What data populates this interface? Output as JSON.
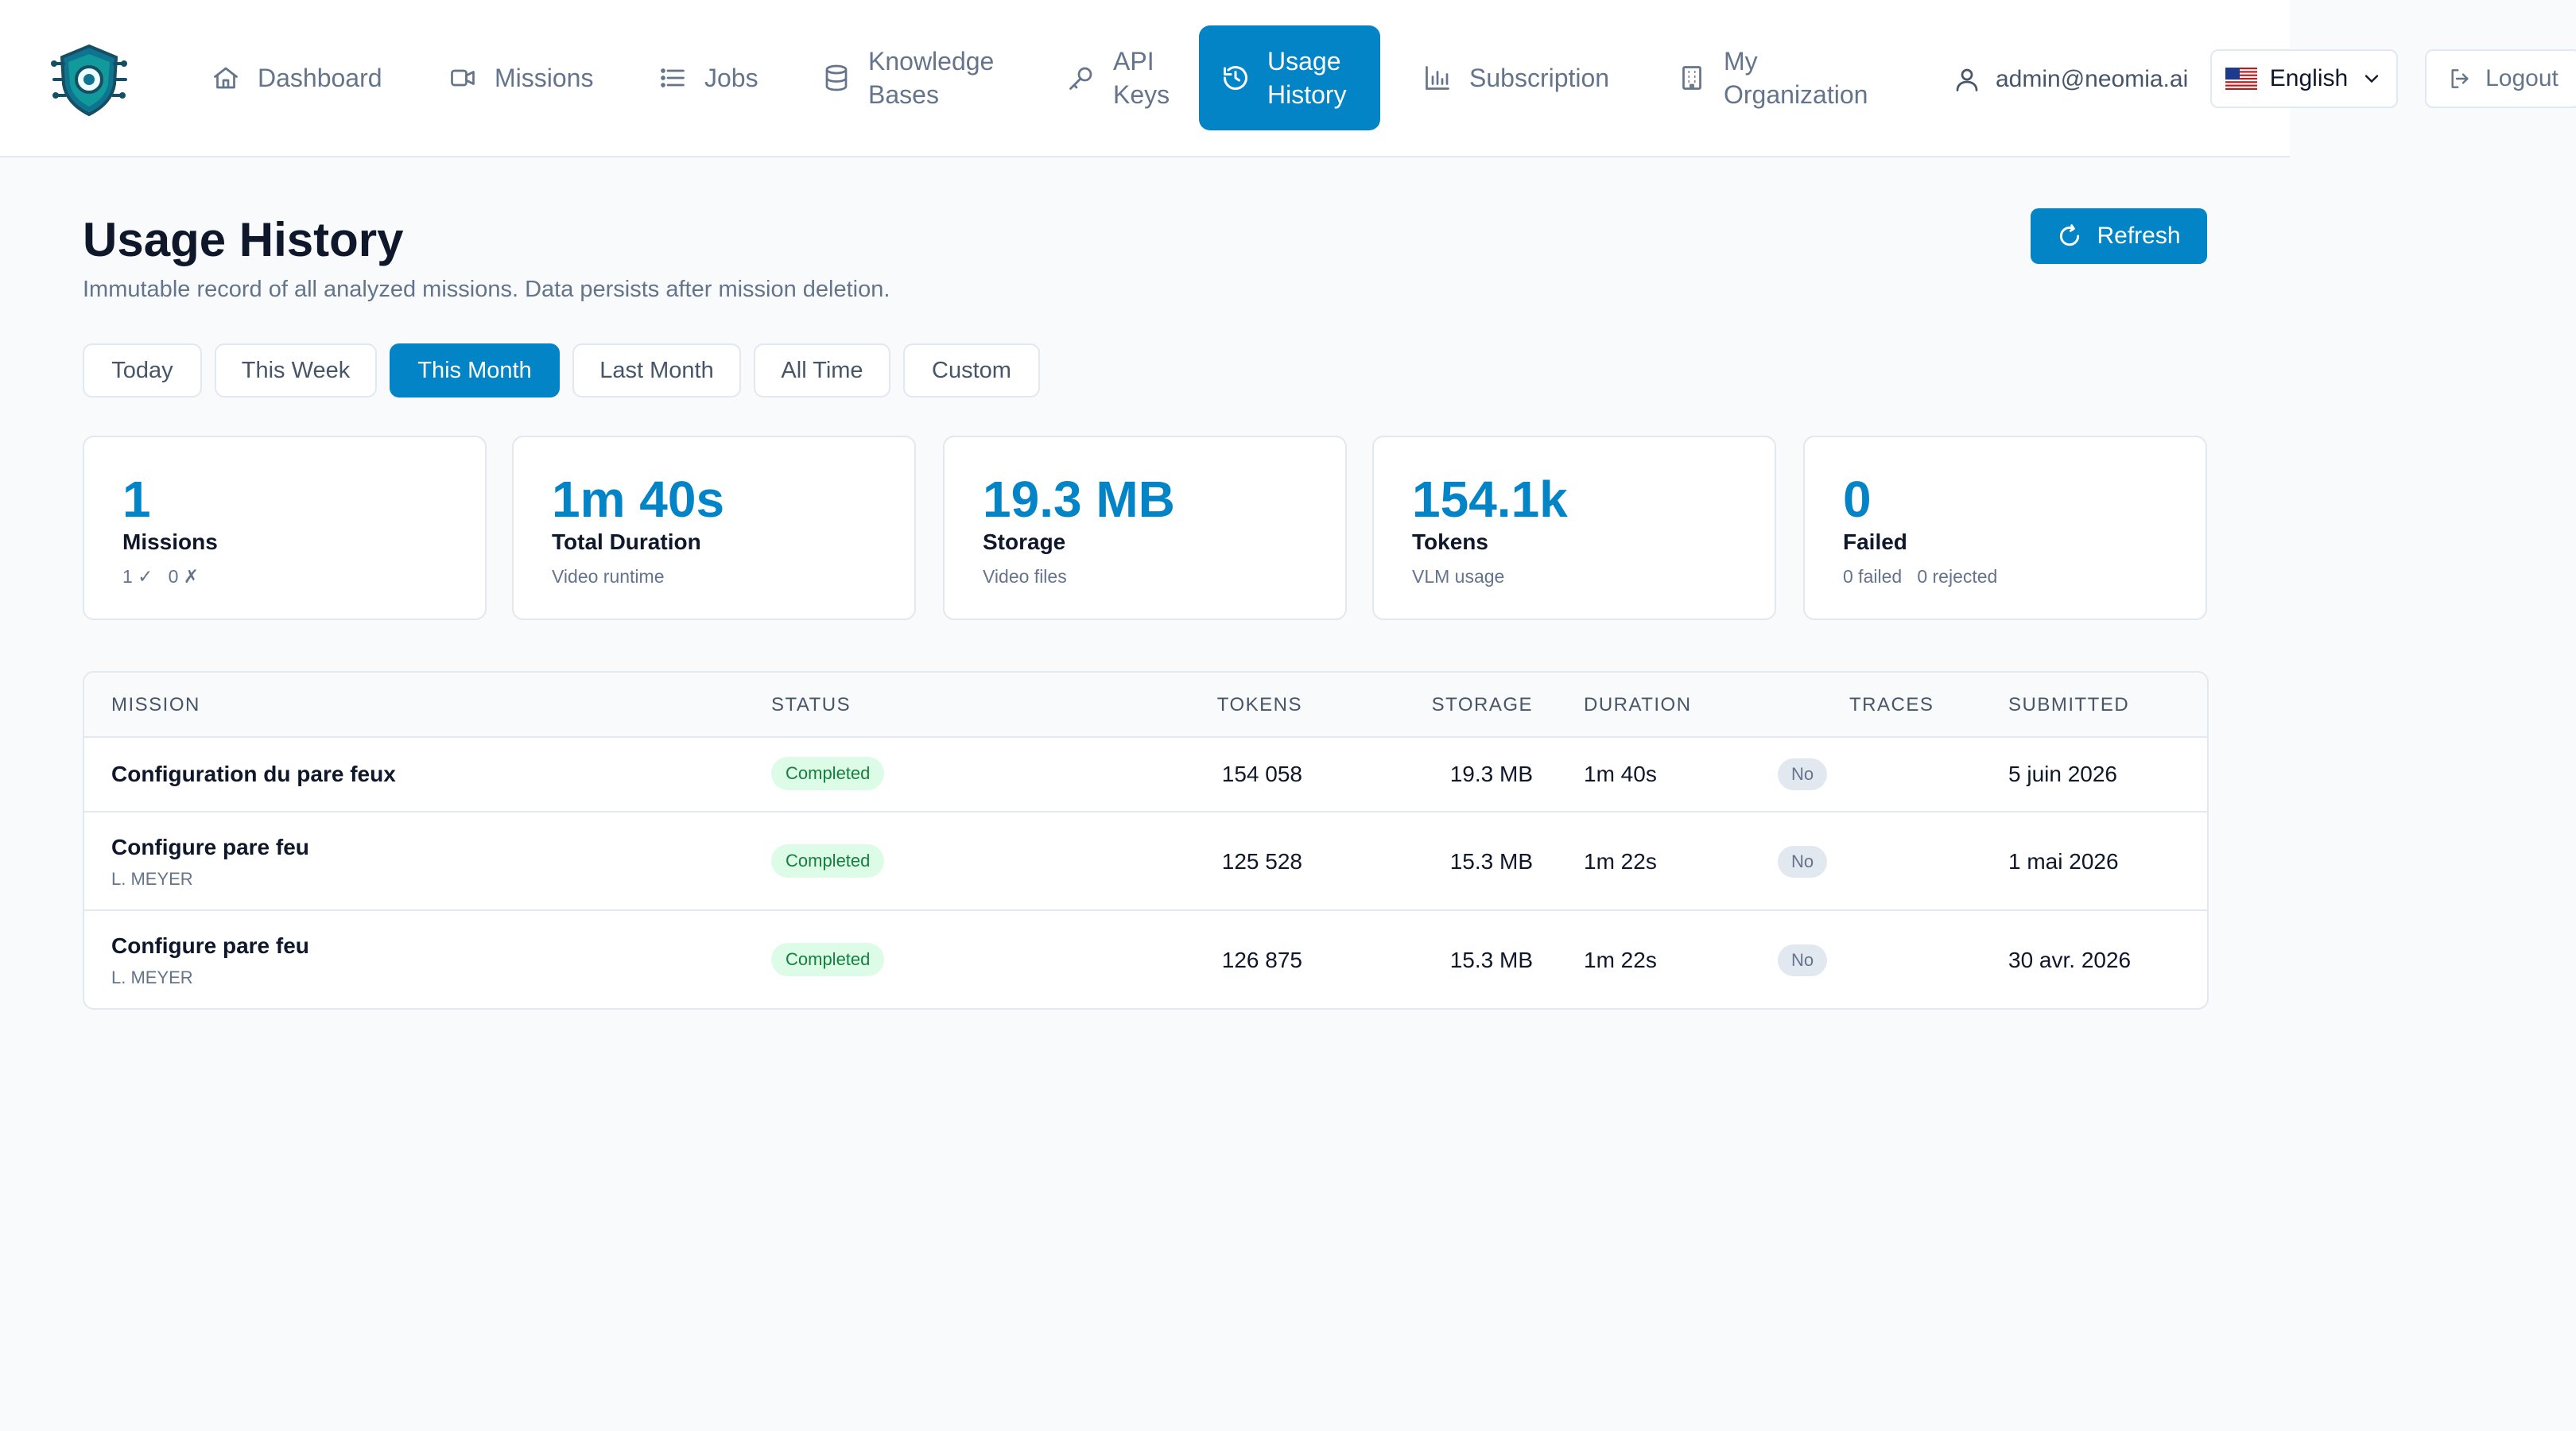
{
  "nav": {
    "items": [
      {
        "id": "dashboard",
        "label": "Dashboard",
        "icon": "home-icon"
      },
      {
        "id": "missions",
        "label": "Missions",
        "icon": "video-icon"
      },
      {
        "id": "jobs",
        "label": "Jobs",
        "icon": "list-icon"
      },
      {
        "id": "knowledge-bases",
        "label": "Knowledge Bases",
        "icon": "database-icon"
      },
      {
        "id": "api-keys",
        "label": "API Keys",
        "icon": "key-icon"
      },
      {
        "id": "usage-history",
        "label": "Usage History",
        "icon": "history-icon",
        "active": true
      },
      {
        "id": "subscription",
        "label": "Subscription",
        "icon": "bar-chart-icon"
      },
      {
        "id": "my-organization",
        "label": "My Organization",
        "icon": "building-icon"
      }
    ],
    "user_email": "admin@neomia.ai",
    "language": "English",
    "logout_label": "Logout"
  },
  "header": {
    "title": "Usage History",
    "subtitle": "Immutable record of all analyzed missions. Data persists after mission deletion.",
    "refresh_label": "Refresh"
  },
  "filters": {
    "items": [
      "Today",
      "This Week",
      "This Month",
      "Last Month",
      "All Time",
      "Custom"
    ],
    "active": "This Month"
  },
  "stats": [
    {
      "value": "1",
      "label": "Missions",
      "sub": "1 ✓   0 ✗"
    },
    {
      "value": "1m 40s",
      "label": "Total Duration",
      "sub": "Video runtime"
    },
    {
      "value": "19.3 MB",
      "label": "Storage",
      "sub": "Video files"
    },
    {
      "value": "154.1k",
      "label": "Tokens",
      "sub": "VLM usage"
    },
    {
      "value": "0",
      "label": "Failed",
      "sub": "0 failed   0 rejected"
    }
  ],
  "table": {
    "columns": [
      "MISSION",
      "STATUS",
      "TOKENS",
      "STORAGE",
      "DURATION",
      "TRACES",
      "SUBMITTED"
    ],
    "rows": [
      {
        "mission": "Configuration du pare feux",
        "user": "",
        "status": "Completed",
        "tokens": "154 058",
        "storage": "19.3 MB",
        "duration": "1m 40s",
        "traces": "No",
        "submitted": "5 juin 2026"
      },
      {
        "mission": "Configure pare feu",
        "user": "L. MEYER",
        "status": "Completed",
        "tokens": "125 528",
        "storage": "15.3 MB",
        "duration": "1m 22s",
        "traces": "No",
        "submitted": "1 mai 2026"
      },
      {
        "mission": "Configure pare feu",
        "user": "L. MEYER",
        "status": "Completed",
        "tokens": "126 875",
        "storage": "15.3 MB",
        "duration": "1m 22s",
        "traces": "No",
        "submitted": "30 avr. 2026"
      }
    ]
  },
  "colors": {
    "primary": "#0284c7",
    "success_bg": "#dcfce7",
    "success_text": "#15803d",
    "muted": "#64748b",
    "border": "#e2e8f0"
  }
}
